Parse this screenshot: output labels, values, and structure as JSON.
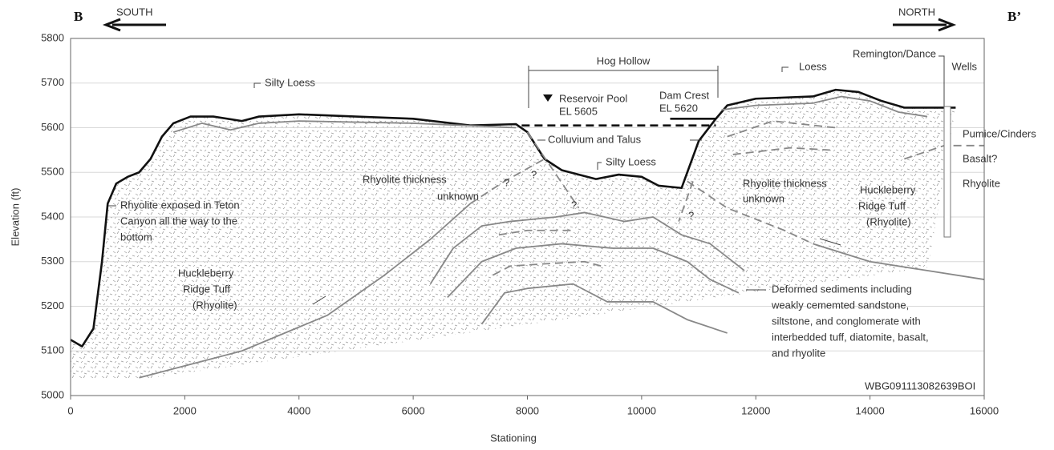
{
  "chart_data": {
    "type": "line",
    "section_start": "B",
    "section_end": "B’",
    "left_direction": "SOUTH",
    "right_direction": "NORTH",
    "xlabel": "Stationing",
    "ylabel": "Elevation (ft)",
    "xlim": [
      0,
      16000
    ],
    "xticks": [
      0,
      2000,
      4000,
      6000,
      8000,
      10000,
      12000,
      14000,
      16000
    ],
    "ylim": [
      5000,
      5800
    ],
    "yticks": [
      5000,
      5100,
      5200,
      5300,
      5400,
      5500,
      5600,
      5700,
      5800
    ],
    "grid": true,
    "series": [
      {
        "color": "#111111",
        "line_style": "solid",
        "heavy": true,
        "x": [
          0,
          200,
          400,
          550,
          650,
          800,
          1000,
          1200,
          1400,
          1600,
          1800,
          2100,
          2500,
          3000,
          3300,
          4000,
          5000,
          6000,
          7000,
          7800,
          8000,
          8300,
          8600,
          9200,
          9600,
          10000,
          10300,
          10700,
          10800,
          11000,
          11300,
          11500,
          12000,
          13000,
          13400,
          13800,
          14200,
          14600,
          15500
        ],
        "values": [
          5125,
          5110,
          5150,
          5300,
          5430,
          5475,
          5490,
          5500,
          5530,
          5580,
          5610,
          5625,
          5625,
          5615,
          5625,
          5630,
          5625,
          5620,
          5605,
          5608,
          5590,
          5530,
          5505,
          5485,
          5495,
          5490,
          5470,
          5465,
          5500,
          5570,
          5620,
          5650,
          5665,
          5670,
          5685,
          5680,
          5660,
          5645,
          5645
        ]
      },
      {
        "color": "#888888",
        "line_style": "solid",
        "heavy": false,
        "x": [
          1800,
          2300,
          2800,
          3300,
          4000,
          6000,
          7800,
          9500,
          11400,
          12000,
          13000,
          13500,
          14000,
          14500,
          15000
        ],
        "values": [
          5590,
          5610,
          5595,
          5610,
          5615,
          5610,
          5600,
          null,
          5640,
          5650,
          5655,
          5670,
          5660,
          5635,
          5625
        ]
      },
      {
        "color": "#888888",
        "line_style": "solid",
        "heavy": false,
        "x": [
          1200,
          3000,
          4500,
          5500,
          6300,
          7000
        ],
        "values": [
          5040,
          5100,
          5180,
          5270,
          5350,
          5430
        ]
      },
      {
        "color": "#888888",
        "line_style": "dashed",
        "heavy": false,
        "x": [
          7000,
          7600,
          8300
        ],
        "values": [
          5430,
          5480,
          5530
        ]
      },
      {
        "color": "#888888",
        "line_style": "dashed",
        "heavy": false,
        "x": [
          8000,
          8900
        ],
        "values": [
          5590,
          5420
        ]
      },
      {
        "color": "#888888",
        "line_style": "dashed",
        "heavy": false,
        "x": [
          10900,
          10650
        ],
        "values": [
          5480,
          5390
        ]
      },
      {
        "color": "#888888",
        "line_style": "dashed",
        "heavy": false,
        "x": [
          10800,
          11500,
          12500,
          13000
        ],
        "values": [
          5480,
          5420,
          5370,
          5340
        ]
      },
      {
        "color": "#888888",
        "line_style": "solid",
        "heavy": false,
        "x": [
          13000,
          14000,
          15000,
          16000
        ],
        "values": [
          5340,
          5300,
          5280,
          5260
        ]
      },
      {
        "color": "#888888",
        "line_style": "solid",
        "heavy": false,
        "x": [
          6300,
          6700,
          7200,
          7700,
          8500,
          9000,
          9700,
          10200,
          10700,
          11200,
          11800
        ],
        "values": [
          5250,
          5330,
          5380,
          5390,
          5400,
          5410,
          5390,
          5400,
          5360,
          5340,
          5280
        ]
      },
      {
        "color": "#888888",
        "line_style": "solid",
        "heavy": false,
        "x": [
          6600,
          7200,
          7800,
          8600,
          9500,
          10200,
          10800,
          11200,
          11700
        ],
        "values": [
          5220,
          5300,
          5330,
          5340,
          5330,
          5330,
          5300,
          5260,
          5230
        ]
      },
      {
        "color": "#888888",
        "line_style": "solid",
        "heavy": false,
        "x": [
          7200,
          7600,
          8000,
          8800,
          9400,
          10200,
          10800,
          11500
        ],
        "values": [
          5160,
          5230,
          5240,
          5250,
          5210,
          5210,
          5170,
          5140
        ]
      },
      {
        "color": "#888888",
        "line_style": "dashed",
        "heavy": false,
        "x": [
          7400,
          7700,
          8300,
          9000,
          9300
        ],
        "values": [
          5270,
          5290,
          5295,
          5300,
          5290
        ]
      },
      {
        "color": "#888888",
        "line_style": "dashed",
        "heavy": false,
        "x": [
          7500,
          8000,
          8800
        ],
        "values": [
          5360,
          5370,
          5370
        ]
      },
      {
        "color": "#888888",
        "line_style": "dashed",
        "heavy": false,
        "x": [
          11500,
          12300,
          13400
        ],
        "values": [
          5580,
          5615,
          5600
        ]
      },
      {
        "color": "#888888",
        "line_style": "dashed",
        "heavy": false,
        "x": [
          11600,
          12600,
          13300
        ],
        "values": [
          5540,
          5555,
          5550
        ]
      },
      {
        "color": "#888888",
        "line_style": "dashed",
        "heavy": false,
        "x": [
          14600,
          15300,
          16000
        ],
        "values": [
          5530,
          5560,
          5560
        ]
      },
      {
        "color": "#111111",
        "line_style": "dashed",
        "heavy": true,
        "x": [
          7900,
          11300
        ],
        "values": [
          5605,
          5605
        ]
      },
      {
        "color": "#111111",
        "line_style": "solid",
        "heavy": true,
        "x": [
          10500,
          11300
        ],
        "values": [
          5620,
          5620
        ]
      }
    ],
    "annotations": [
      [
        "Silty Loess"
      ],
      [
        "Hog Hollow"
      ],
      [
        "Reservoir Pool",
        "EL 5605"
      ],
      [
        "Dam Crest",
        "EL 5620"
      ],
      [
        "Loess"
      ],
      [
        "Remington/Dance",
        "Wells"
      ],
      [
        "Pumice/Cinders"
      ],
      [
        "Basalt?"
      ],
      [
        "Rhyolite"
      ],
      [
        "Colluvium and Talus"
      ],
      [
        "Silty Loess"
      ],
      [
        "Rhyolite thickness",
        "unknown"
      ],
      [
        "Rhyolite thickness",
        "unknown"
      ],
      [
        "Huckleberry",
        "Ridge Tuff",
        "(Rhyolite)"
      ],
      [
        "Rhyolite exposed in Teton",
        "Canyon all the way to the",
        "bottom"
      ],
      [
        "Huckleberry",
        "Ridge Tuff",
        "(Rhyolite)"
      ],
      [
        "Deformed sediments including",
        "weakly cememted sandstone,",
        "siltstone, and conglomerate with",
        "interbedded tuff, diatomite, basalt,",
        "and rhyolite"
      ],
      [
        "WBG091113082639BOI"
      ],
      [
        "?"
      ],
      [
        "?"
      ],
      [
        "?"
      ],
      [
        "?"
      ]
    ]
  }
}
